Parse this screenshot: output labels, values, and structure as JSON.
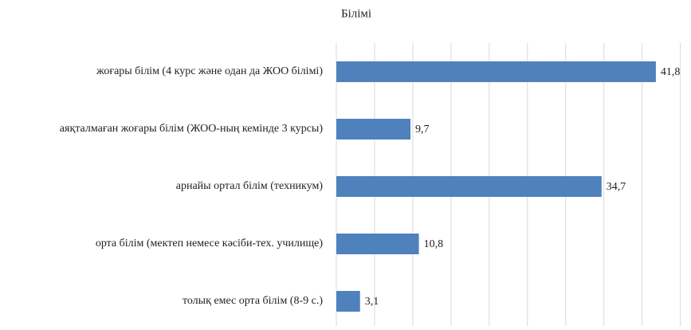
{
  "chart_data": {
    "type": "barh",
    "title": "Білімі",
    "categories": [
      "жоғары білім (4 курс және одан да ЖОО білімі)",
      "аяқталмаған жоғары білім (ЖОО-ның кемінде 3 курсы)",
      "арнайы ортал білім (техникум)",
      "орта білім (мектеп немесе кәсіби-тех. училище)",
      "толық емес орта білім  (8-9 с.)"
    ],
    "values": [
      41.8,
      9.7,
      34.7,
      10.8,
      3.1
    ],
    "value_labels": [
      "41,8",
      "9,7",
      "34,7",
      "10,8",
      "3,1"
    ],
    "color": "#4f81bd",
    "xlim": [
      0,
      45
    ],
    "xticks": [
      0,
      5,
      10,
      15,
      20,
      25,
      30,
      35,
      40,
      45
    ],
    "grid": true
  }
}
